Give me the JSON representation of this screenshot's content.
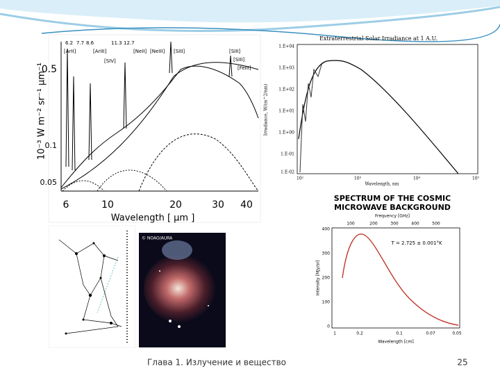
{
  "footer": {
    "chapter": "Глава 1. Излучение и вещество",
    "page": "25"
  },
  "ir_spectrum": {
    "xlabel": "Wavelength [ μm ]",
    "ylabel": "10⁻³ W m⁻² sr⁻¹ μm⁻¹",
    "xticks": [
      "6",
      "10",
      "20",
      "30",
      "40"
    ],
    "yticks": [
      "0.5",
      "0.1",
      "0.05"
    ],
    "features": [
      "6.2",
      "7.7",
      "8.6",
      "11.3",
      "12.7",
      "[ArII]",
      "[ArIII]",
      "[SIV]",
      "[NeII]",
      "[NeIII]",
      "[SIII]",
      "[SIII]",
      "[SIII]",
      "[FeIII]"
    ]
  },
  "solar": {
    "title": "Extraterrestrial Solar Irradiance at 1 A.U.",
    "xlabel": "Wavelength, nm",
    "ylabel": "Irradiance, W/(m^2/nm)",
    "yticks": [
      "1.E+04",
      "1.E+03",
      "1.E+02",
      "1.E+01",
      "1.E+00",
      "1.E-01",
      "1.E-02"
    ],
    "xticks": [
      "10²",
      "10³",
      "10⁴",
      "10⁵"
    ]
  },
  "cmb": {
    "title_line1": "SPECTRUM OF THE COSMIC",
    "title_line2": "MICROWAVE BACKGROUND",
    "top_label": "Frequency [GHz]",
    "top_ticks": [
      "100",
      "200",
      "300",
      "400",
      "500"
    ],
    "yticks": [
      "400",
      "300",
      "200",
      "100",
      "0"
    ],
    "xticks": [
      "1",
      "0.2",
      "0.1",
      "0.07",
      "0.05"
    ],
    "xlabel": "Wavelength [cm]",
    "ylabel": "Intensity [MJy/sr]",
    "annotation": "T = 2.725 ± 0.001°K"
  },
  "orion_photo": {
    "credit": "© NOAO/AURA"
  }
}
